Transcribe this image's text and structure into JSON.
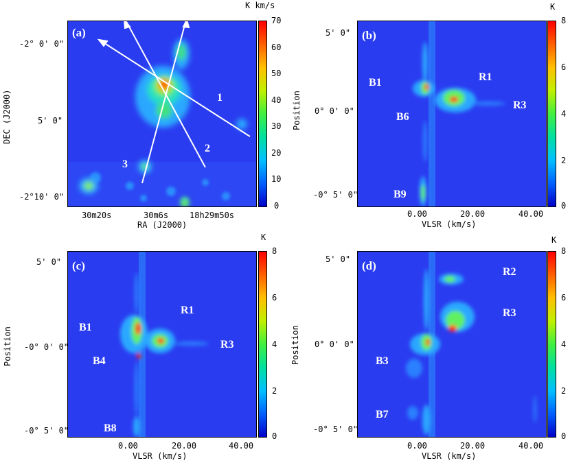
{
  "panels": {
    "a": {
      "tag": "(a)",
      "unit": "K km/s",
      "colorbar_ticks": [
        "70",
        "60",
        "50",
        "40",
        "30",
        "20",
        "10",
        "0"
      ],
      "y_ticks": [
        "-2° 0' 0\"",
        "5' 0\"",
        "-2°10' 0\""
      ],
      "x_ticks": [
        "30m20s",
        "30m6s",
        "18h29m50s"
      ],
      "xlabel": "RA (J2000)",
      "ylabel": "DEC (J2000)",
      "cut_labels": [
        "1",
        "2",
        "3"
      ]
    },
    "b": {
      "tag": "(b)",
      "unit": "K",
      "colorbar_ticks": [
        "8",
        "6",
        "4",
        "2",
        "0"
      ],
      "y_ticks": [
        "5' 0\"",
        "0° 0' 0\"",
        "-0° 5' 0\""
      ],
      "x_ticks": [
        "0.00",
        "20.00",
        "40.00"
      ],
      "xlabel": "VLSR   (km/s)",
      "ylabel": "Position",
      "features": [
        "B1",
        "R1",
        "B6",
        "R3",
        "B9"
      ]
    },
    "c": {
      "tag": "(c)",
      "unit": "K",
      "colorbar_ticks": [
        "8",
        "6",
        "4",
        "2",
        "0"
      ],
      "y_ticks": [
        "5' 0\"",
        "-0° 0' 0\"",
        "-0° 5' 0\""
      ],
      "x_ticks": [
        "0.00",
        "20.00",
        "40.00"
      ],
      "xlabel": "VLSR   (km/s)",
      "ylabel": "Position",
      "features": [
        "R1",
        "B1",
        "B4",
        "R3",
        "B8"
      ]
    },
    "d": {
      "tag": "(d)",
      "unit": "K",
      "colorbar_ticks": [
        "8",
        "6",
        "4",
        "2",
        "0"
      ],
      "y_ticks": [
        "5' 0\"",
        "0° 0' 0\"",
        "-0° 5' 0\""
      ],
      "x_ticks": [
        "0.00",
        "20.00",
        "40.00"
      ],
      "xlabel": "VLSR   (km/s)",
      "ylabel": "Position",
      "features": [
        "R2",
        "R3",
        "B3",
        "B7"
      ]
    }
  },
  "colors": {
    "background": "#2a3cf0",
    "cut_arrows": "#ffffff",
    "colormap": [
      "#0000c8",
      "#0060ff",
      "#00c0ff",
      "#00e0a0",
      "#40f040",
      "#c0f000",
      "#ffc000",
      "#ff6000",
      "#ff0000"
    ]
  }
}
